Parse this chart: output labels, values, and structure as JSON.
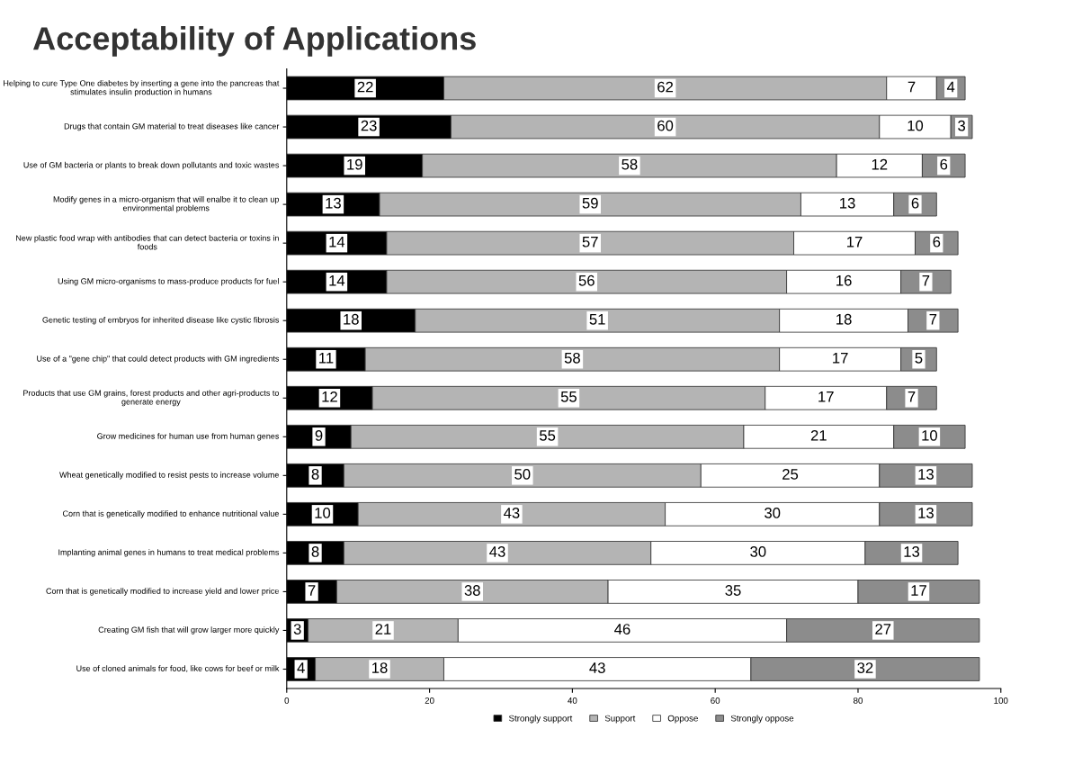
{
  "chart_data": {
    "type": "bar",
    "orientation": "horizontal",
    "stacked": true,
    "title": "Acceptability of Applications",
    "categories": [
      "Helping to cure Type One diabetes by inserting a gene into the pancreas that stimulates insulin production in humans",
      "Drugs that contain GM material to treat diseases like cancer",
      "Use of GM bacteria or plants to break down pollutants and toxic wastes",
      "Modify genes in a micro-organism that will enalbe it to clean up environmental problems",
      "New plastic food wrap with antibodies that can detect bacteria or toxins in foods",
      "Using GM micro-organisms to mass-produce products for fuel",
      "Genetic testing of embryos for inherited disease like cystic fibrosis",
      "Use of a \"gene chip\" that could detect products with GM ingredients",
      "Products that use GM grains, forest products and other agri-products to generate energy",
      "Grow medicines for human use from human genes",
      "Wheat genetically modified to resist pests to increase volume",
      "Corn that is genetically modified to enhance nutritional value",
      "Implanting animal genes in humans to treat medical problems",
      "Corn that is genetically modified to increase yield and lower price",
      "Creating GM fish that will grow larger more quickly",
      "Use of cloned animals for food, like cows for beef or milk"
    ],
    "series": [
      {
        "name": "Strongly support",
        "color": "#000000",
        "values": [
          22,
          23,
          19,
          13,
          14,
          14,
          18,
          11,
          12,
          9,
          8,
          10,
          8,
          7,
          3,
          4
        ]
      },
      {
        "name": "Support",
        "color": "#b4b4b4",
        "values": [
          62,
          60,
          58,
          59,
          57,
          56,
          51,
          58,
          55,
          55,
          50,
          43,
          43,
          38,
          21,
          18
        ]
      },
      {
        "name": "Oppose",
        "color": "#ffffff",
        "values": [
          7,
          10,
          12,
          13,
          17,
          16,
          18,
          17,
          17,
          21,
          25,
          30,
          30,
          35,
          46,
          43
        ]
      },
      {
        "name": "Strongly oppose",
        "color": "#8c8c8c",
        "values": [
          4,
          3,
          6,
          6,
          6,
          7,
          7,
          5,
          7,
          10,
          13,
          13,
          13,
          17,
          27,
          32
        ]
      }
    ],
    "xlim": [
      0,
      100
    ],
    "xticks": [
      0,
      20,
      40,
      60,
      80,
      100
    ],
    "data_labels": true,
    "legend": "bottom",
    "grid": false
  }
}
